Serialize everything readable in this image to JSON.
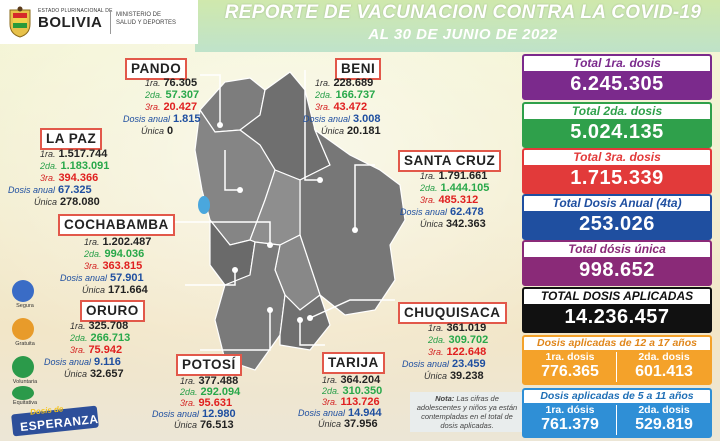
{
  "header": {
    "logo_small": "ESTADO PLURINACIONAL DE",
    "logo_big": "BOLIVIA",
    "ministry_line1": "MINISTERIO DE",
    "ministry_line2": "SALUD Y DEPORTES",
    "title_line1": "REPORTE DE VACUNACION CONTRA LA COVID-19",
    "title_line2": "AL 30 DE JUNIO DE 2022"
  },
  "dose_labels": {
    "first": "1ra.",
    "second": "2da.",
    "third": "3ra.",
    "annual": "Dosis anual",
    "single": "Única"
  },
  "departments": {
    "pando": {
      "name": "PANDO",
      "first": "76.305",
      "second": "57.307",
      "third": "20.427",
      "annual": "1.815",
      "single": "0"
    },
    "beni": {
      "name": "BENI",
      "first": "228.689",
      "second": "166.737",
      "third": "43.472",
      "annual": "3.008",
      "single": "20.181"
    },
    "lapaz": {
      "name": "LA PAZ",
      "first": "1.517.744",
      "second": "1.183.091",
      "third": "394.366",
      "annual": "67.325",
      "single": "278.080"
    },
    "santacruz": {
      "name": "SANTA CRUZ",
      "first": "1.791.661",
      "second": "1.444.105",
      "third": "485.312",
      "annual": "62.478",
      "single": "342.363"
    },
    "cochabamba": {
      "name": "COCHABAMBA",
      "first": "1.202.487",
      "second": "994.036",
      "third": "363.815",
      "annual": "57.901",
      "single": "171.664"
    },
    "oruro": {
      "name": "ORURO",
      "first": "325.708",
      "second": "266.713",
      "third": "75.942",
      "annual": "9.116",
      "single": "32.657"
    },
    "chuquisaca": {
      "name": "CHUQUISACA",
      "first": "361.019",
      "second": "309.702",
      "third": "122.648",
      "annual": "23.459",
      "single": "39.238"
    },
    "potosi": {
      "name": "POTOSÍ",
      "first": "377.488",
      "second": "292.094",
      "third": "95.631",
      "annual": "12.980",
      "single": "76.513"
    },
    "tarija": {
      "name": "TARIJA",
      "first": "364.204",
      "second": "310.350",
      "third": "113.726",
      "annual": "14.944",
      "single": "37.956"
    }
  },
  "totals": {
    "first_label": "Total 1ra. dosis",
    "first_value": "6.245.305",
    "second_label": "Total 2da. dosis",
    "second_value": "5.024.135",
    "third_label": "Total 3ra. dosis",
    "third_value": "1.715.339",
    "annual_label": "Total Dosis Anual (4ta)",
    "annual_value": "253.026",
    "single_label": "Total dósis única",
    "single_value": "998.652",
    "all_label": "TOTAL DOSIS APLICADAS",
    "all_value": "14.236.457",
    "age12_label": "Dosis aplicadas de 12 a 17 años",
    "age12_first_label": "1ra. dosis",
    "age12_first_value": "776.365",
    "age12_second_label": "2da. dosis",
    "age12_second_value": "601.413",
    "age5_label": "Dosis aplicadas de 5 a 11 años",
    "age5_first_label": "1ra. dósis",
    "age5_first_value": "761.379",
    "age5_second_label": "2da. dosis",
    "age5_second_value": "529.819"
  },
  "side": {
    "segura": "Segura",
    "gratuita": "Gratuita",
    "voluntaria": "Voluntaria",
    "equitativa": "Equitativa",
    "badge_line1": "Dosis de",
    "badge_line2": "ESPERANZA"
  },
  "note": {
    "bold": "Nota:",
    "text": "Las cifras de adolescentes y niños ya están contempladas en el total de dosis aplicadas."
  },
  "colors": {
    "purple": "#7b2a8c",
    "green": "#2fa04b",
    "red": "#e23a3a",
    "blue": "#1f4fa0",
    "magenta": "#8a2a78",
    "black": "#111111",
    "orange": "#f4a22a",
    "sky": "#2f8fd6"
  }
}
